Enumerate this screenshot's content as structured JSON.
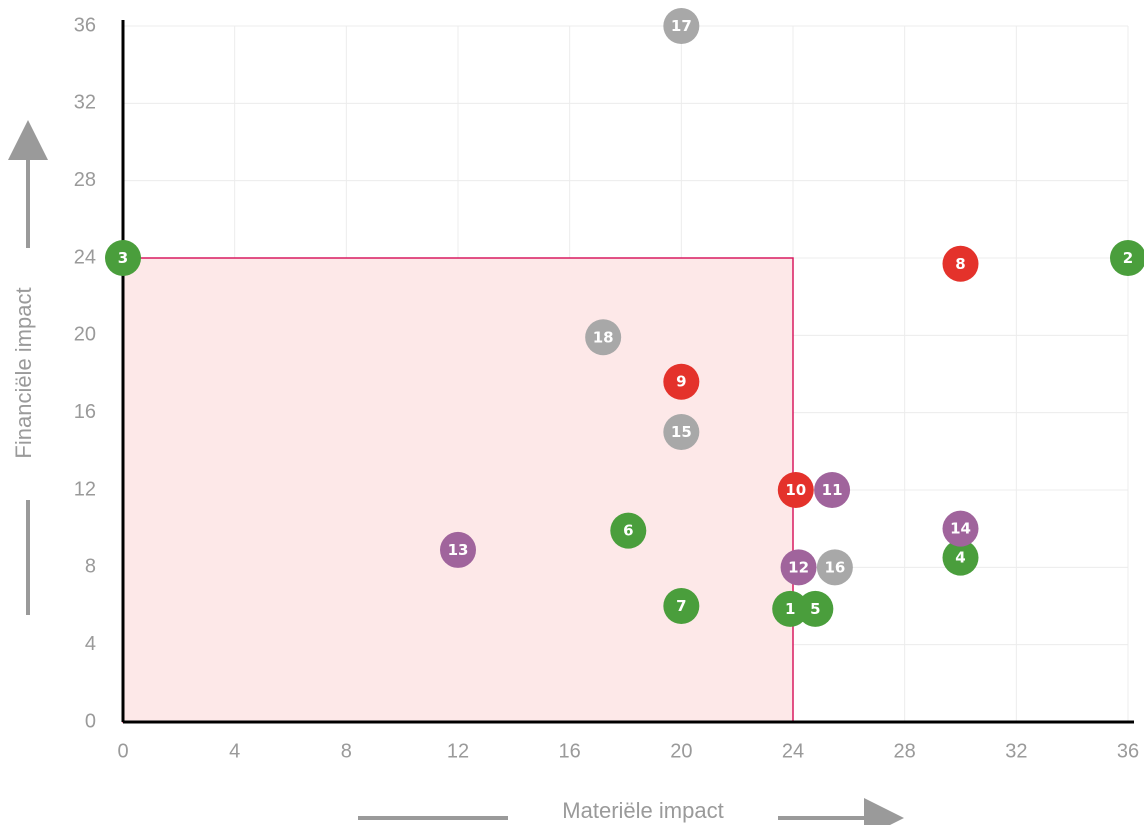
{
  "chart_data": {
    "type": "scatter",
    "x_label": "Materiële impact",
    "y_label": "Financiële impact",
    "xlim": [
      0,
      36
    ],
    "ylim": [
      0,
      36
    ],
    "xticks": [
      0,
      4,
      8,
      12,
      16,
      20,
      24,
      28,
      32,
      36
    ],
    "yticks": [
      0,
      4,
      8,
      12,
      16,
      20,
      24,
      28,
      32,
      36
    ],
    "grid": true,
    "highlight": {
      "x": [
        0,
        24
      ],
      "y": [
        0,
        24
      ],
      "color": "#fde8e8",
      "edge": "#d81b60"
    },
    "points": {
      "labels": [
        "1",
        "2",
        "3",
        "4",
        "5",
        "6",
        "7",
        "8",
        "9",
        "10",
        "11",
        "12",
        "13",
        "14",
        "15",
        "16",
        "17",
        "18"
      ],
      "x": [
        23.9,
        36,
        0,
        30,
        24.8,
        18.1,
        20,
        30,
        20,
        24.1,
        25.4,
        24.2,
        12,
        30,
        20,
        25.5,
        20,
        17.2
      ],
      "y": [
        5.85,
        24,
        24,
        8.5,
        5.85,
        9.9,
        6,
        23.7,
        17.6,
        12,
        12,
        8,
        8.9,
        10,
        15,
        8,
        36,
        19.9
      ],
      "colors": [
        "#4a9e3c",
        "#4a9e3c",
        "#4a9e3c",
        "#4a9e3c",
        "#4a9e3c",
        "#4a9e3c",
        "#4a9e3c",
        "#e4322b",
        "#e4322b",
        "#e4322b",
        "#a0649c",
        "#a0649c",
        "#a0649c",
        "#a0649c",
        "#a8a8a8",
        "#a8a8a8",
        "#a8a8a8",
        "#a8a8a8"
      ]
    }
  }
}
